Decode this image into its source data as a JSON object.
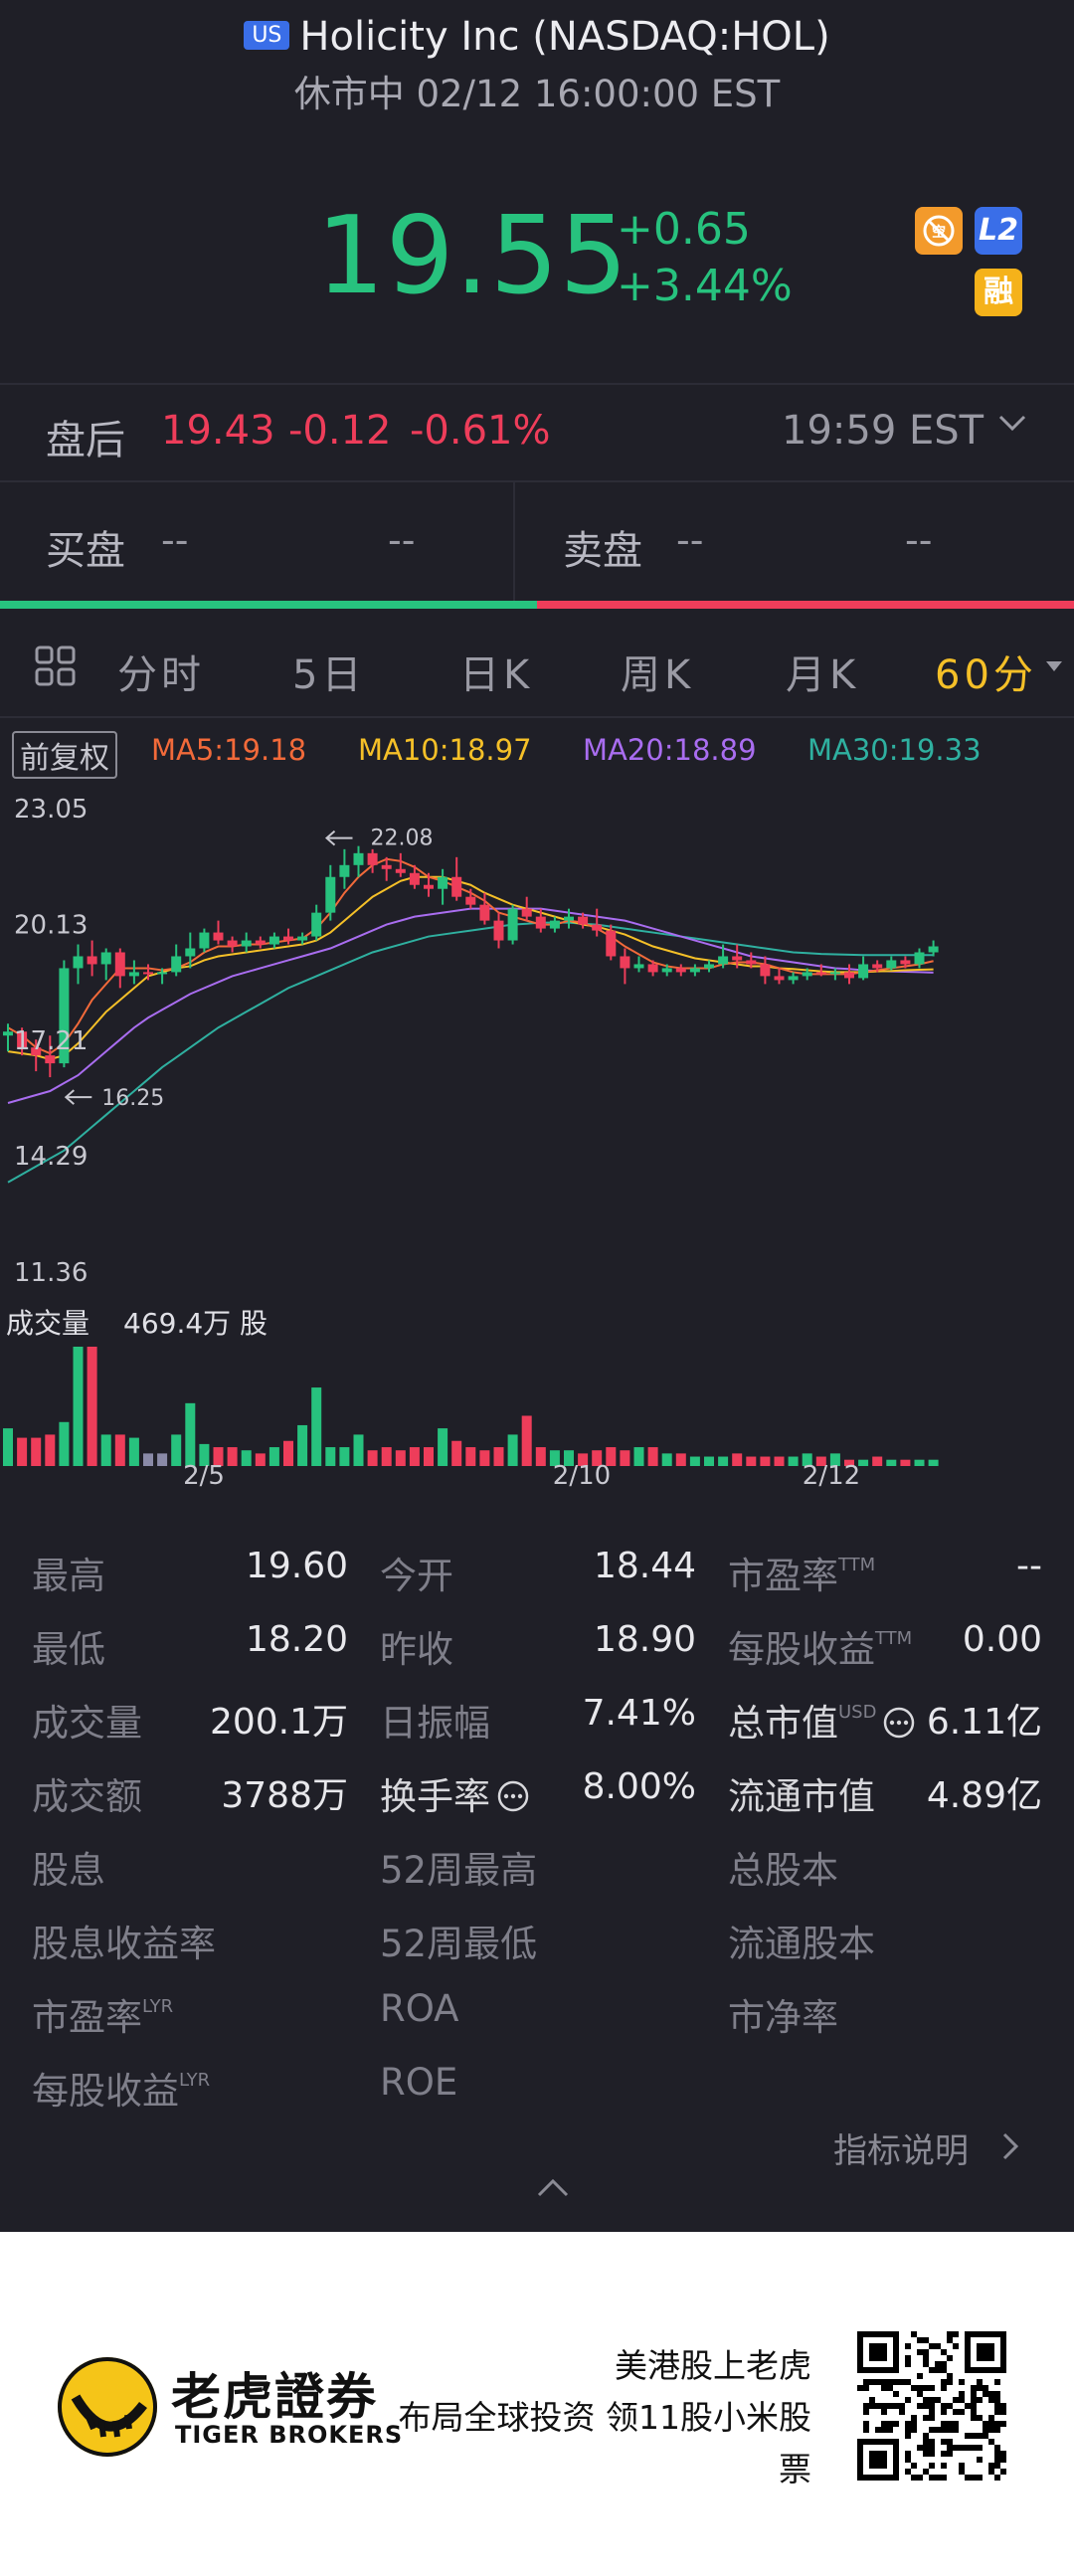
{
  "header": {
    "market_badge": "US",
    "title": "Holicity Inc (NASDAQ:HOL)",
    "status": "休市中 02/12 16:00:00 EST",
    "price": "19.55",
    "change": "+0.65",
    "change_pct": "+3.44%",
    "badges": {
      "l2": "L2",
      "margin": "融",
      "orange_icon": "no-short-icon"
    }
  },
  "after_hours": {
    "label": "盘后",
    "price": "19.43",
    "change": "-0.12",
    "change_pct": "-0.61%",
    "time": "19:59 EST"
  },
  "bid_ask": {
    "bid_label": "买盘",
    "bid_price": "--",
    "bid_size": "--",
    "ask_label": "卖盘",
    "ask_price": "--",
    "ask_size": "--"
  },
  "tabs": {
    "items": [
      "分时",
      "5日",
      "日K",
      "周K",
      "月K"
    ],
    "active": "60分"
  },
  "indicators": {
    "adjust": "前复权",
    "ma5": "MA5:19.18",
    "ma10": "MA10:18.97",
    "ma20": "MA20:18.89",
    "ma30": "MA30:19.33",
    "colors": {
      "ma5": "#f26a3a",
      "ma10": "#f5c028",
      "ma20": "#a96df0",
      "ma30": "#2fb0a0"
    }
  },
  "chart_data": {
    "type": "candlestick",
    "y_ticks": [
      "23.05",
      "20.13",
      "17.21",
      "14.29",
      "11.36"
    ],
    "ylim": [
      11.36,
      23.05
    ],
    "max_label": "22.08",
    "min_label": "16.25",
    "x_ticks": [
      "2/5",
      "2/10",
      "2/12"
    ],
    "volume_label": "成交量",
    "volume_value": "469.4万 股",
    "candles": [
      {
        "o": 17.3,
        "h": 17.6,
        "l": 16.9,
        "c": 17.4
      },
      {
        "o": 17.4,
        "h": 17.5,
        "l": 16.8,
        "c": 17.0
      },
      {
        "o": 17.0,
        "h": 17.2,
        "l": 16.4,
        "c": 16.8
      },
      {
        "o": 16.8,
        "h": 17.3,
        "l": 16.25,
        "c": 16.6
      },
      {
        "o": 16.6,
        "h": 19.2,
        "l": 16.5,
        "c": 19.0
      },
      {
        "o": 19.0,
        "h": 19.6,
        "l": 18.6,
        "c": 19.3
      },
      {
        "o": 19.3,
        "h": 19.7,
        "l": 18.8,
        "c": 19.1
      },
      {
        "o": 19.1,
        "h": 19.5,
        "l": 18.7,
        "c": 19.4
      },
      {
        "o": 19.4,
        "h": 19.5,
        "l": 18.5,
        "c": 18.8
      },
      {
        "o": 18.8,
        "h": 19.2,
        "l": 18.6,
        "c": 18.9
      },
      {
        "o": 18.9,
        "h": 19.1,
        "l": 18.7,
        "c": 18.85
      },
      {
        "o": 18.85,
        "h": 19.0,
        "l": 18.6,
        "c": 18.9
      },
      {
        "o": 18.9,
        "h": 19.6,
        "l": 18.8,
        "c": 19.3
      },
      {
        "o": 19.3,
        "h": 19.9,
        "l": 19.0,
        "c": 19.5
      },
      {
        "o": 19.5,
        "h": 20.0,
        "l": 19.4,
        "c": 19.9
      },
      {
        "o": 19.9,
        "h": 20.2,
        "l": 19.6,
        "c": 19.7
      },
      {
        "o": 19.7,
        "h": 19.8,
        "l": 19.4,
        "c": 19.55
      },
      {
        "o": 19.55,
        "h": 19.9,
        "l": 19.4,
        "c": 19.7
      },
      {
        "o": 19.7,
        "h": 19.8,
        "l": 19.5,
        "c": 19.6
      },
      {
        "o": 19.6,
        "h": 19.9,
        "l": 19.5,
        "c": 19.8
      },
      {
        "o": 19.8,
        "h": 20.0,
        "l": 19.6,
        "c": 19.7
      },
      {
        "o": 19.7,
        "h": 19.9,
        "l": 19.6,
        "c": 19.8
      },
      {
        "o": 19.8,
        "h": 20.6,
        "l": 19.7,
        "c": 20.4
      },
      {
        "o": 20.4,
        "h": 21.6,
        "l": 20.2,
        "c": 21.3
      },
      {
        "o": 21.3,
        "h": 22.0,
        "l": 21.0,
        "c": 21.6
      },
      {
        "o": 21.6,
        "h": 22.08,
        "l": 21.3,
        "c": 21.9
      },
      {
        "o": 21.9,
        "h": 22.0,
        "l": 21.4,
        "c": 21.6
      },
      {
        "o": 21.6,
        "h": 21.8,
        "l": 21.2,
        "c": 21.5
      },
      {
        "o": 21.5,
        "h": 21.9,
        "l": 21.3,
        "c": 21.4
      },
      {
        "o": 21.4,
        "h": 21.6,
        "l": 21.0,
        "c": 21.1
      },
      {
        "o": 21.1,
        "h": 21.4,
        "l": 20.8,
        "c": 21.0
      },
      {
        "o": 21.0,
        "h": 21.5,
        "l": 20.6,
        "c": 21.3
      },
      {
        "o": 21.3,
        "h": 21.8,
        "l": 20.7,
        "c": 20.8
      },
      {
        "o": 20.8,
        "h": 21.0,
        "l": 20.5,
        "c": 20.6
      },
      {
        "o": 20.6,
        "h": 20.9,
        "l": 20.1,
        "c": 20.2
      },
      {
        "o": 20.2,
        "h": 20.4,
        "l": 19.5,
        "c": 19.7
      },
      {
        "o": 19.7,
        "h": 20.6,
        "l": 19.6,
        "c": 20.5
      },
      {
        "o": 20.5,
        "h": 20.8,
        "l": 20.2,
        "c": 20.3
      },
      {
        "o": 20.3,
        "h": 20.5,
        "l": 19.9,
        "c": 20.0
      },
      {
        "o": 20.0,
        "h": 20.3,
        "l": 19.9,
        "c": 20.2
      },
      {
        "o": 20.2,
        "h": 20.5,
        "l": 20.0,
        "c": 20.3
      },
      {
        "o": 20.3,
        "h": 20.4,
        "l": 20.0,
        "c": 20.1
      },
      {
        "o": 20.1,
        "h": 20.5,
        "l": 19.8,
        "c": 19.95
      },
      {
        "o": 19.95,
        "h": 20.1,
        "l": 19.2,
        "c": 19.3
      },
      {
        "o": 19.3,
        "h": 19.5,
        "l": 18.6,
        "c": 19.0
      },
      {
        "o": 19.0,
        "h": 19.3,
        "l": 18.9,
        "c": 19.1
      },
      {
        "o": 19.1,
        "h": 19.2,
        "l": 18.8,
        "c": 18.9
      },
      {
        "o": 18.9,
        "h": 19.1,
        "l": 18.8,
        "c": 19.0
      },
      {
        "o": 19.0,
        "h": 19.1,
        "l": 18.8,
        "c": 18.9
      },
      {
        "o": 18.9,
        "h": 19.1,
        "l": 18.8,
        "c": 19.0
      },
      {
        "o": 19.0,
        "h": 19.2,
        "l": 18.9,
        "c": 19.1
      },
      {
        "o": 19.1,
        "h": 19.6,
        "l": 19.0,
        "c": 19.3
      },
      {
        "o": 19.3,
        "h": 19.6,
        "l": 19.0,
        "c": 19.2
      },
      {
        "o": 19.2,
        "h": 19.4,
        "l": 19.0,
        "c": 19.1
      },
      {
        "o": 19.1,
        "h": 19.3,
        "l": 18.6,
        "c": 18.8
      },
      {
        "o": 18.8,
        "h": 19.0,
        "l": 18.6,
        "c": 18.7
      },
      {
        "o": 18.7,
        "h": 18.9,
        "l": 18.6,
        "c": 18.8
      },
      {
        "o": 18.8,
        "h": 19.0,
        "l": 18.7,
        "c": 18.9
      },
      {
        "o": 18.9,
        "h": 19.1,
        "l": 18.8,
        "c": 18.85
      },
      {
        "o": 18.85,
        "h": 19.0,
        "l": 18.7,
        "c": 18.9
      },
      {
        "o": 18.9,
        "h": 19.1,
        "l": 18.6,
        "c": 18.75
      },
      {
        "o": 18.75,
        "h": 19.3,
        "l": 18.7,
        "c": 19.1
      },
      {
        "o": 19.1,
        "h": 19.2,
        "l": 18.9,
        "c": 19.0
      },
      {
        "o": 19.0,
        "h": 19.3,
        "l": 18.95,
        "c": 19.2
      },
      {
        "o": 19.2,
        "h": 19.3,
        "l": 19.0,
        "c": 19.1
      },
      {
        "o": 19.1,
        "h": 19.5,
        "l": 19.0,
        "c": 19.4
      },
      {
        "o": 19.4,
        "h": 19.7,
        "l": 19.3,
        "c": 19.55
      }
    ],
    "volumes": [
      12,
      9,
      9,
      10,
      14,
      38,
      38,
      10,
      10,
      9,
      4,
      4,
      10,
      20,
      7,
      6,
      6,
      5,
      4,
      6,
      8,
      13,
      25,
      6,
      6,
      10,
      5,
      6,
      5,
      6,
      6,
      12,
      8,
      6,
      5,
      6,
      10,
      16,
      6,
      5,
      5,
      4,
      5,
      6,
      5,
      6,
      6,
      4,
      4,
      3,
      3,
      3,
      4,
      3,
      3,
      3,
      3,
      4,
      3,
      4,
      2,
      2,
      3,
      2,
      2,
      2,
      2
    ],
    "ma5": [
      17.5,
      17.3,
      17.0,
      16.85,
      17.1,
      17.6,
      18.2,
      18.6,
      19.0,
      19.0,
      19.0,
      18.95,
      19.0,
      19.15,
      19.4,
      19.55,
      19.55,
      19.6,
      19.6,
      19.65,
      19.7,
      19.75,
      20.0,
      20.4,
      20.9,
      21.3,
      21.6,
      21.75,
      21.7,
      21.55,
      21.3,
      21.2,
      21.05,
      20.9,
      20.7,
      20.4,
      20.3,
      20.2,
      20.1,
      20.1,
      20.2,
      20.15,
      20.0,
      19.8,
      19.55,
      19.35,
      19.15,
      19.05,
      19.0,
      19.0,
      19.0,
      19.1,
      19.15,
      19.15,
      19.1,
      19.0,
      18.9,
      18.85,
      18.85,
      18.85,
      18.85,
      18.9,
      18.95,
      19.0,
      19.05,
      19.1,
      19.18
    ],
    "ma10": [
      16.9,
      16.85,
      16.8,
      16.7,
      16.8,
      17.1,
      17.5,
      17.9,
      18.2,
      18.5,
      18.8,
      18.9,
      19.0,
      19.05,
      19.2,
      19.3,
      19.35,
      19.4,
      19.45,
      19.5,
      19.55,
      19.6,
      19.7,
      19.9,
      20.2,
      20.5,
      20.8,
      21.0,
      21.2,
      21.3,
      21.3,
      21.3,
      21.2,
      21.1,
      20.9,
      20.75,
      20.6,
      20.5,
      20.4,
      20.3,
      20.2,
      20.1,
      20.05,
      19.95,
      19.85,
      19.7,
      19.55,
      19.45,
      19.35,
      19.25,
      19.2,
      19.15,
      19.1,
      19.05,
      19.05,
      19.0,
      18.98,
      18.95,
      18.92,
      18.9,
      18.9,
      18.9,
      18.92,
      18.93,
      18.95,
      18.96,
      18.97
    ],
    "ma20": [
      15.6,
      15.7,
      15.8,
      15.9,
      16.1,
      16.3,
      16.6,
      16.9,
      17.2,
      17.5,
      17.75,
      17.95,
      18.15,
      18.35,
      18.5,
      18.65,
      18.8,
      18.9,
      19.0,
      19.1,
      19.2,
      19.3,
      19.4,
      19.5,
      19.65,
      19.8,
      19.95,
      20.1,
      20.2,
      20.3,
      20.35,
      20.4,
      20.45,
      20.5,
      20.5,
      20.5,
      20.5,
      20.5,
      20.5,
      20.45,
      20.4,
      20.35,
      20.3,
      20.25,
      20.2,
      20.1,
      20.0,
      19.9,
      19.8,
      19.7,
      19.6,
      19.5,
      19.4,
      19.3,
      19.25,
      19.2,
      19.15,
      19.1,
      19.05,
      19.0,
      18.98,
      18.95,
      18.93,
      18.92,
      18.91,
      18.9,
      18.89
    ],
    "ma30": [
      13.6,
      13.8,
      14.0,
      14.2,
      14.4,
      14.7,
      15.0,
      15.3,
      15.6,
      15.9,
      16.2,
      16.5,
      16.75,
      17.0,
      17.25,
      17.5,
      17.7,
      17.9,
      18.1,
      18.3,
      18.5,
      18.65,
      18.8,
      18.95,
      19.1,
      19.25,
      19.4,
      19.5,
      19.6,
      19.7,
      19.8,
      19.85,
      19.9,
      19.95,
      20.0,
      20.05,
      20.1,
      20.12,
      20.15,
      20.15,
      20.15,
      20.12,
      20.1,
      20.05,
      20.0,
      19.95,
      19.9,
      19.85,
      19.8,
      19.75,
      19.7,
      19.65,
      19.6,
      19.55,
      19.5,
      19.45,
      19.4,
      19.38,
      19.36,
      19.35,
      19.34,
      19.33,
      19.33,
      19.33,
      19.33,
      19.33,
      19.33
    ]
  },
  "stats": {
    "rows": [
      [
        {
          "l": "最高",
          "v": "19.60"
        },
        {
          "l": "今开",
          "v": "18.44"
        },
        {
          "l": "市盈率",
          "sup": "TTM",
          "v": "--"
        }
      ],
      [
        {
          "l": "最低",
          "v": "18.20"
        },
        {
          "l": "昨收",
          "v": "18.90"
        },
        {
          "l": "每股收益",
          "sup": "TTM",
          "v": "0.00"
        }
      ],
      [
        {
          "l": "成交量",
          "v": "200.1万"
        },
        {
          "l": "日振幅",
          "v": "7.41%"
        },
        {
          "l": "总市值",
          "sup": "USD",
          "v": "6.11亿"
        }
      ],
      [
        {
          "l": "成交额",
          "v": "3788万"
        },
        {
          "l": "换手率",
          "v": "8.00%"
        },
        {
          "l": "流通市值",
          "v": "4.89亿"
        }
      ],
      [
        {
          "l": "股息",
          "v": ""
        },
        {
          "l": "52周最高",
          "v": ""
        },
        {
          "l": "总股本",
          "v": ""
        }
      ],
      [
        {
          "l": "股息收益率",
          "v": ""
        },
        {
          "l": "52周最低",
          "v": ""
        },
        {
          "l": "流通股本",
          "v": ""
        }
      ],
      [
        {
          "l": "市盈率",
          "sup": "LYR",
          "v": ""
        },
        {
          "l": "ROA",
          "v": ""
        },
        {
          "l": "市净率",
          "v": ""
        }
      ],
      [
        {
          "l": "每股收益",
          "sup": "LYR",
          "v": ""
        },
        {
          "l": "ROE",
          "v": ""
        },
        {
          "l": "",
          "v": ""
        }
      ]
    ],
    "indicator_link": "指标说明"
  },
  "footer": {
    "brand_cn": "老虎證券",
    "brand_en": "TIGER BROKERS",
    "slogan_line1": "美港股上老虎",
    "slogan_line2": "布局全球投资 领11股小米股",
    "slogan_line3": "票"
  }
}
